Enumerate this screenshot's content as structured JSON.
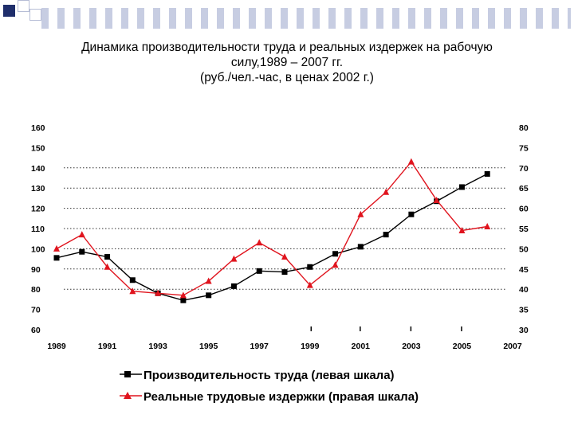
{
  "title": {
    "line1": "Динамика производительности труда и реальных издержек на рабочую",
    "line2": "силу,1989 – 2007 гг.",
    "line3": "(руб./чел.-час, в ценах 2002 г.)"
  },
  "colors": {
    "productivity": "#000000",
    "labor_costs": "#e0141e",
    "decor_square": "#1f2e6b",
    "decor_outline": "#b6bdd6"
  },
  "chart_data": {
    "type": "line",
    "x": [
      1989,
      1990,
      1991,
      1992,
      1993,
      1994,
      1995,
      1996,
      1997,
      1998,
      1999,
      2000,
      2001,
      2002,
      2003,
      2004,
      2005,
      2006,
      2007
    ],
    "x_tick_labels": [
      "1989",
      "1991",
      "1993",
      "1995",
      "1997",
      "1999",
      "2001",
      "2003",
      "2005",
      "2007"
    ],
    "y_left_ticks": [
      "160",
      "150",
      "140",
      "130",
      "120",
      "110",
      "100",
      "90",
      "80",
      "70",
      "60"
    ],
    "y_right_ticks": [
      "80",
      "75",
      "70",
      "65",
      "60",
      "55",
      "50",
      "45",
      "40",
      "35",
      "30"
    ],
    "ylim_left": [
      60,
      160
    ],
    "ylim_right": [
      30,
      80
    ],
    "series": [
      {
        "name": "Производительность труда (левая шкала)",
        "axis": "left",
        "marker": "square",
        "x": [
          1989,
          1990,
          1991,
          1992,
          1993,
          1994,
          1995,
          1996,
          1997,
          1998,
          1999,
          2000,
          2001,
          2002,
          2003,
          2004,
          2005,
          2006
        ],
        "values": [
          95.5,
          98.5,
          96,
          84.5,
          78,
          74.5,
          77,
          81.5,
          89,
          88.5,
          91,
          97.5,
          101,
          107,
          117,
          123.5,
          130.5,
          137
        ]
      },
      {
        "name": "Реальные трудовые издержки (правая шкала)",
        "axis": "right",
        "marker": "triangle",
        "x": [
          1989,
          1990,
          1991,
          1992,
          1993,
          1994,
          1995,
          1996,
          1997,
          1998,
          1999,
          2000,
          2001,
          2002,
          2003,
          2004,
          2005,
          2006
        ],
        "values": [
          50,
          53.5,
          45.5,
          39.5,
          39,
          38.5,
          42,
          47.5,
          51.5,
          48,
          41,
          46,
          58.5,
          64,
          71.5,
          62,
          54.5,
          55.5
        ]
      }
    ],
    "grid": "dotted horizontal lines from 140 to 80 on left axis",
    "legend": "bottom-center"
  }
}
